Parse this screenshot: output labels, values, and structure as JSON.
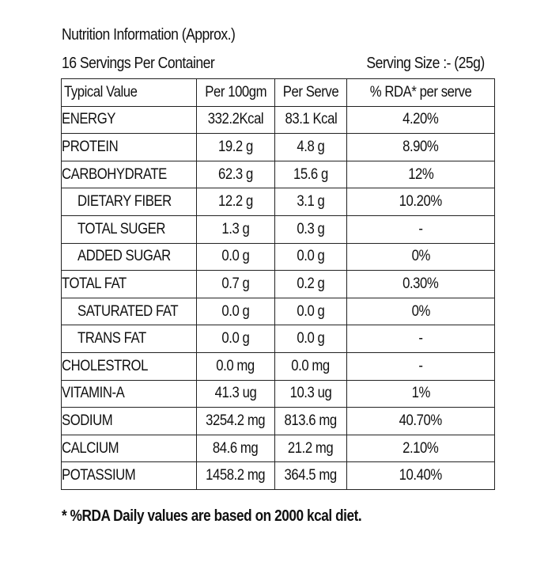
{
  "header": {
    "title": "Nutrition Information (Approx.)",
    "servings": "16 Servings Per Container",
    "serving_size": "Serving Size :- (25g)"
  },
  "table": {
    "columns": [
      "Typical Value",
      "Per 100gm",
      "Per Serve",
      "% RDA* per serve"
    ],
    "rows": [
      {
        "name": "ENERGY",
        "per100": "332.2Kcal",
        "perServe": "83.1 Kcal",
        "rda": "4.20%"
      },
      {
        "name": "PROTEIN",
        "per100": "19.2 g",
        "perServe": "4.8 g",
        "rda": "8.90%"
      },
      {
        "name": "CARBOHYDRATE",
        "per100": "62.3 g",
        "perServe": "15.6 g",
        "rda": "12%"
      },
      {
        "name": "DIETARY FIBER",
        "per100": "12.2 g",
        "perServe": "3.1 g",
        "rda": "10.20%"
      },
      {
        "name": "TOTAL SUGER",
        "per100": "1.3 g",
        "perServe": "0.3 g",
        "rda": "-"
      },
      {
        "name": "ADDED SUGAR",
        "per100": "0.0 g",
        "perServe": "0.0 g",
        "rda": "0%"
      },
      {
        "name": "TOTAL FAT",
        "per100": "0.7 g",
        "perServe": "0.2 g",
        "rda": "0.30%"
      },
      {
        "name": "SATURATED FAT",
        "per100": "0.0 g",
        "perServe": "0.0 g",
        "rda": "0%"
      },
      {
        "name": "TRANS FAT",
        "per100": "0.0 g",
        "perServe": "0.0 g",
        "rda": "-"
      },
      {
        "name": "CHOLESTROL",
        "per100": "0.0 mg",
        "perServe": "0.0 mg",
        "rda": "-"
      },
      {
        "name": "VITAMIN-A",
        "per100": "41.3 ug",
        "perServe": "10.3 ug",
        "rda": "1%"
      },
      {
        "name": "SODIUM",
        "per100": "3254.2 mg",
        "perServe": "813.6 mg",
        "rda": "40.70%"
      },
      {
        "name": "CALCIUM",
        "per100": "84.6 mg",
        "perServe": "21.2 mg",
        "rda": "2.10%"
      },
      {
        "name": "POTASSIUM",
        "per100": "1458.2 mg",
        "perServe": "364.5 mg",
        "rda": "10.40%"
      }
    ]
  },
  "footnote": "* %RDA Daily values are based on 2000 kcal diet."
}
